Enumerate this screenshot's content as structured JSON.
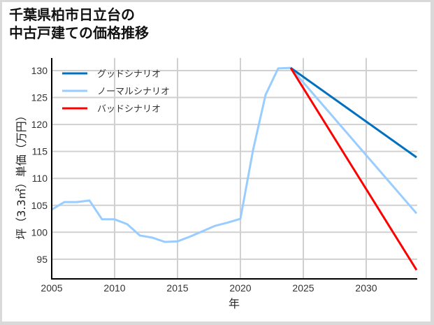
{
  "title_line1": "千葉県柏市日立台の",
  "title_line2": "中古戸建ての価格推移",
  "chart_data": {
    "type": "line",
    "title": "千葉県柏市日立台の中古戸建ての価格推移",
    "xlabel": "年",
    "ylabel": "坪（3.3㎡）単価（万円）",
    "xlim": [
      2005,
      2034
    ],
    "ylim": [
      91.5,
      133
    ],
    "xticks": [
      2005,
      2010,
      2015,
      2020,
      2025,
      2030
    ],
    "yticks": [
      95,
      100,
      105,
      110,
      115,
      120,
      125,
      130
    ],
    "grid": true,
    "legend_position": "upper left",
    "series": [
      {
        "name": "グッドシナリオ",
        "color": "#0070c0",
        "x": [
          2024,
          2034
        ],
        "values": [
          130.5,
          113.9
        ]
      },
      {
        "name": "ノーマルシナリオ",
        "color": "#99ccff",
        "x": [
          2005,
          2006,
          2007,
          2008,
          2009,
          2010,
          2011,
          2012,
          2013,
          2014,
          2015,
          2016,
          2017,
          2018,
          2019,
          2020,
          2021,
          2022,
          2023,
          2024,
          2034
        ],
        "values": [
          104.2,
          105.6,
          105.6,
          105.9,
          102.4,
          102.4,
          101.5,
          99.4,
          99.0,
          98.2,
          98.3,
          99.2,
          100.2,
          101.2,
          101.8,
          102.5,
          115.2,
          125.5,
          130.4,
          130.5,
          103.5
        ]
      },
      {
        "name": "バッドシナリオ",
        "color": "#ff0000",
        "x": [
          2024,
          2034
        ],
        "values": [
          130.5,
          93.0
        ]
      }
    ]
  }
}
